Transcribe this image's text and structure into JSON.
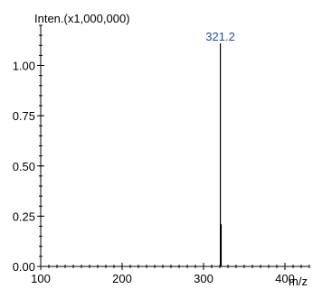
{
  "chart_data": {
    "type": "bar",
    "title": "",
    "ylabel": "Inten.(x1,000,000)",
    "xlabel": "m/z",
    "xlim": [
      100,
      430
    ],
    "ylim": [
      0,
      1.2
    ],
    "x_ticks": [
      "100",
      "200",
      "300",
      "400"
    ],
    "y_ticks": [
      "0.00",
      "0.25",
      "0.50",
      "0.75",
      "1.00"
    ],
    "series": [
      {
        "x": [
          321.2,
          322.2
        ],
        "values": [
          1.11,
          0.21
        ],
        "labels": [
          "321.2",
          ""
        ]
      }
    ],
    "grid": false,
    "colors": {
      "axis": "#000000",
      "bar": "#000000",
      "peak_label": "#1f4fa0"
    }
  }
}
